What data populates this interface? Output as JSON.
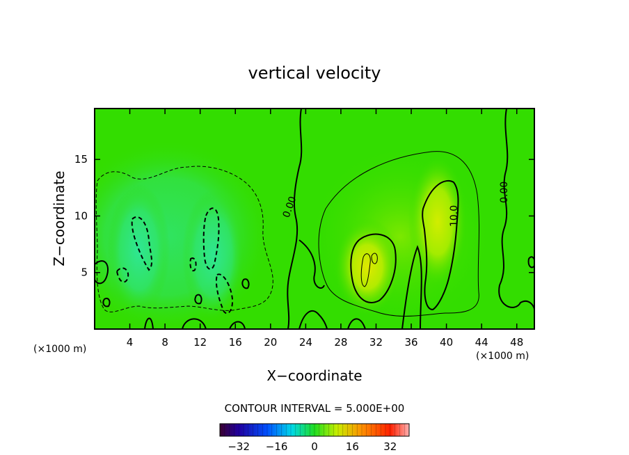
{
  "chart_data": {
    "type": "heatmap",
    "title": "vertical velocity",
    "xlabel": "X−coordinate",
    "ylabel": "Z−coordinate",
    "x_unit": "(×1000 m)",
    "xlim": [
      0,
      50
    ],
    "ylim": [
      0,
      19.5
    ],
    "x_ticks": [
      4,
      8,
      12,
      16,
      20,
      24,
      28,
      32,
      36,
      40,
      44,
      48
    ],
    "y_ticks": [
      5,
      10,
      15
    ],
    "contour_interval_text": "CONTOUR INTERVAL = 5.000E+00",
    "contour_interval": 5,
    "colorbar": {
      "min": -40,
      "max": 40,
      "ticks": [
        -32,
        -16,
        0,
        16,
        32
      ],
      "tick_labels": [
        "−32",
        "−16",
        "0",
        "16",
        "32"
      ]
    },
    "contour_labels": [
      {
        "text": "0.00",
        "x": 22.5,
        "z": 10.7,
        "angle": -70
      },
      {
        "text": "0.00",
        "x": 46.9,
        "z": 12.1,
        "angle": -90
      },
      {
        "text": "10.0",
        "x": 41.2,
        "z": 10.0,
        "angle": -90
      }
    ],
    "features": [
      {
        "kind": "updraft",
        "x": 31.0,
        "z": 5.5,
        "peak": 13
      },
      {
        "kind": "updraft",
        "x": 39.0,
        "z": 9.5,
        "peak": 12
      },
      {
        "kind": "downdraft",
        "x": 5.0,
        "z": 7.0,
        "peak": -6
      },
      {
        "kind": "downdraft",
        "x": 13.5,
        "z": 6.5,
        "peak": -6
      }
    ]
  }
}
